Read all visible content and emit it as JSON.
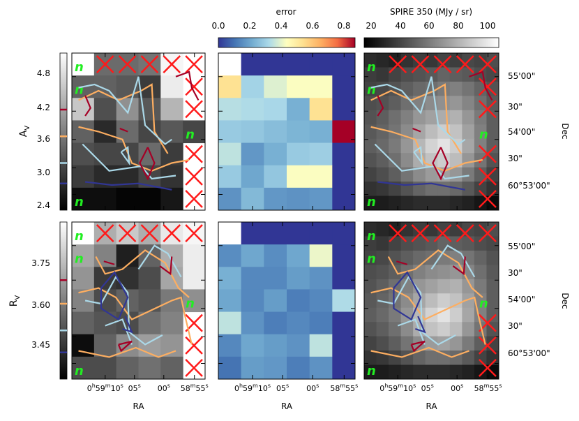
{
  "colorbars": {
    "error": {
      "label": "error",
      "ticks": [
        "0.0",
        "0.2",
        "0.4",
        "0.6",
        "0.8"
      ],
      "range": [
        0.0,
        0.85
      ],
      "cmap": "RdYlBu_r"
    },
    "spire": {
      "label": "SPIRE 350 (MJy / sr)",
      "ticks": [
        "20",
        "40",
        "60",
        "80",
        "100"
      ],
      "range": [
        16,
        108
      ],
      "cmap": "gray"
    }
  },
  "rows": {
    "av": {
      "ylabel_main": "A",
      "ylabel_sub": "V",
      "ticks": [
        "4.8",
        "4.2",
        "3.6",
        "3.0",
        "2.4"
      ],
      "range": [
        2.25,
        5.0
      ]
    },
    "rv": {
      "ylabel_main": "R",
      "ylabel_sub": "V",
      "ticks": [
        "3.75",
        "3.60",
        "3.45"
      ],
      "range": [
        3.33,
        3.9
      ]
    }
  },
  "axes": {
    "xlabel": "RA",
    "xticks": {
      "t1": {
        "h": "0",
        "hs": "h",
        "m": "59",
        "ms": "m",
        "s": "10",
        "ss": "s"
      },
      "t2": {
        "s": "05",
        "ss": "s"
      },
      "t3": {
        "s": "00",
        "ss": "s"
      },
      "t4": {
        "m": "58",
        "ms": "m",
        "s": "55",
        "ss": "s"
      }
    },
    "dec_label": "Dec",
    "dec_ticks": [
      "55'00\"",
      "30\"",
      "54'00\"",
      "30\"",
      "60°53'00\""
    ]
  },
  "marker_letter": "n",
  "chart_data": [
    {
      "type": "heatmap",
      "title": "",
      "ylabel": "A_V",
      "xlabel": "",
      "cmap": "gray",
      "vmin": 2.25,
      "vmax": 5.0,
      "grid": [
        [
          null,
          3.4,
          3.4,
          3.5,
          4.9,
          null
        ],
        [
          3.3,
          3.3,
          3.2,
          2.9,
          4.8,
          null
        ],
        [
          4.4,
          3.1,
          3.8,
          3.2,
          4.2,
          null
        ],
        [
          3.3,
          2.7,
          3.4,
          3.0,
          3.2,
          3.0
        ],
        [
          3.1,
          3.0,
          3.0,
          3.4,
          2.9,
          null
        ],
        [
          2.9,
          2.7,
          2.7,
          3.0,
          2.8,
          null
        ],
        [
          2.4,
          2.4,
          2.3,
          2.3,
          2.5,
          null
        ]
      ]
    },
    {
      "type": "heatmap",
      "title": "",
      "xlabel": "RA",
      "cmap": "RdYlBu_r",
      "vmin": 0.0,
      "vmax": 0.85,
      "grid": [
        [
          null,
          0.0,
          0.0,
          0.0,
          0.0,
          0.0
        ],
        [
          0.52,
          0.3,
          0.38,
          0.42,
          0.42,
          0.0
        ],
        [
          0.33,
          0.32,
          0.31,
          0.22,
          0.52,
          0.0
        ],
        [
          0.28,
          0.27,
          0.25,
          0.23,
          0.22,
          0.85
        ],
        [
          0.34,
          0.17,
          0.22,
          0.28,
          0.29,
          0.0
        ],
        [
          0.28,
          0.2,
          0.27,
          0.42,
          0.42,
          0.0
        ],
        [
          0.16,
          0.24,
          0.17,
          0.16,
          0.17,
          0.0
        ]
      ]
    },
    {
      "type": "heatmap",
      "title": "",
      "xlabel": "",
      "cmap": "gray",
      "vmin": 16,
      "vmax": 108,
      "grid": [
        [
          32,
          30,
          28,
          34,
          38,
          36,
          40,
          38,
          42,
          40,
          44
        ],
        [
          38,
          36,
          40,
          44,
          46,
          48,
          52,
          50,
          48,
          44,
          42
        ],
        [
          40,
          42,
          46,
          50,
          54,
          56,
          60,
          62,
          58,
          52,
          46
        ],
        [
          44,
          46,
          50,
          56,
          62,
          66,
          68,
          70,
          64,
          56,
          48
        ],
        [
          46,
          50,
          56,
          62,
          70,
          74,
          78,
          80,
          70,
          60,
          50
        ],
        [
          48,
          52,
          58,
          66,
          76,
          84,
          90,
          86,
          74,
          62,
          50
        ],
        [
          50,
          54,
          60,
          70,
          82,
          92,
          98,
          90,
          76,
          62,
          50
        ],
        [
          46,
          50,
          56,
          66,
          78,
          86,
          90,
          84,
          70,
          58,
          46
        ],
        [
          40,
          44,
          50,
          58,
          66,
          72,
          74,
          70,
          60,
          50,
          40
        ],
        [
          34,
          36,
          40,
          46,
          52,
          56,
          56,
          54,
          48,
          40,
          34
        ],
        [
          26,
          26,
          28,
          30,
          32,
          32,
          32,
          30,
          28,
          24,
          20
        ]
      ]
    },
    {
      "type": "heatmap",
      "title": "",
      "ylabel": "R_V",
      "xlabel": "RA",
      "cmap": "gray",
      "vmin": 3.33,
      "vmax": 3.9,
      "grid": [
        [
          null,
          3.72,
          3.78,
          3.72,
          3.85,
          3.88
        ],
        [
          3.7,
          3.62,
          3.4,
          3.55,
          3.72,
          3.86
        ],
        [
          3.66,
          3.46,
          3.44,
          3.5,
          3.7,
          3.86
        ],
        [
          3.62,
          3.5,
          3.55,
          3.52,
          3.6,
          3.65
        ],
        [
          3.55,
          3.52,
          3.5,
          3.58,
          3.62,
          null
        ],
        [
          3.36,
          3.55,
          3.64,
          3.68,
          3.66,
          null
        ],
        [
          3.5,
          3.5,
          3.55,
          3.58,
          3.55,
          null
        ]
      ]
    },
    {
      "type": "heatmap",
      "title": "",
      "xlabel": "RA",
      "cmap": "RdYlBu_r",
      "vmin": 0.0,
      "vmax": 0.85,
      "grid": [
        [
          null,
          0.0,
          0.0,
          0.0,
          0.0,
          0.0
        ],
        [
          0.15,
          0.2,
          0.15,
          0.2,
          0.4,
          0.0
        ],
        [
          0.22,
          0.14,
          0.14,
          0.18,
          0.16,
          0.0
        ],
        [
          0.2,
          0.14,
          0.18,
          0.12,
          0.14,
          0.32
        ],
        [
          0.34,
          0.16,
          0.12,
          0.14,
          0.12,
          0.0
        ],
        [
          0.14,
          0.2,
          0.18,
          0.16,
          0.34,
          0.0
        ],
        [
          0.1,
          0.18,
          0.17,
          0.12,
          0.16,
          0.0
        ]
      ]
    },
    {
      "type": "heatmap",
      "title": "",
      "xlabel": "RA",
      "cmap": "gray",
      "vmin": 16,
      "vmax": 108,
      "grid": [
        [
          32,
          30,
          28,
          34,
          38,
          36,
          40,
          38,
          42,
          40,
          44
        ],
        [
          38,
          36,
          40,
          44,
          46,
          48,
          52,
          50,
          48,
          44,
          42
        ],
        [
          40,
          42,
          46,
          50,
          54,
          56,
          60,
          62,
          58,
          52,
          46
        ],
        [
          44,
          46,
          50,
          56,
          62,
          66,
          68,
          70,
          64,
          56,
          48
        ],
        [
          46,
          50,
          56,
          62,
          70,
          74,
          78,
          80,
          70,
          60,
          50
        ],
        [
          48,
          52,
          58,
          66,
          76,
          84,
          90,
          86,
          74,
          62,
          50
        ],
        [
          50,
          54,
          60,
          70,
          82,
          92,
          98,
          90,
          76,
          62,
          50
        ],
        [
          46,
          50,
          56,
          66,
          78,
          86,
          90,
          84,
          70,
          58,
          46
        ],
        [
          40,
          44,
          50,
          58,
          66,
          72,
          74,
          70,
          60,
          50,
          40
        ],
        [
          34,
          36,
          40,
          46,
          52,
          56,
          56,
          54,
          48,
          40,
          34
        ],
        [
          26,
          26,
          28,
          30,
          32,
          32,
          32,
          30,
          28,
          24,
          20
        ]
      ]
    }
  ]
}
